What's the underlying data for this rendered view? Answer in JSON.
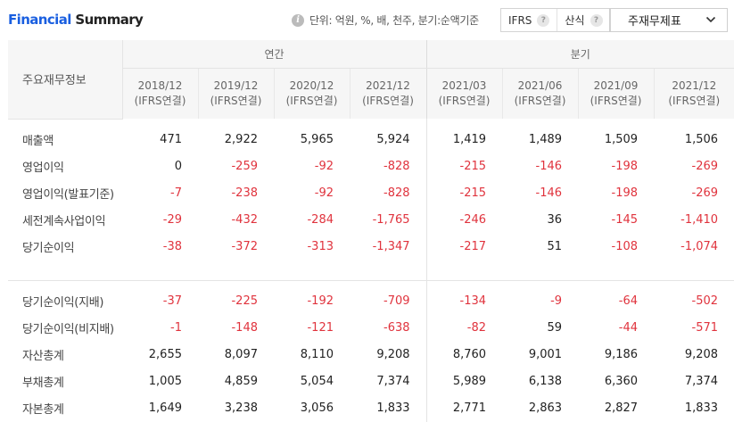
{
  "header": {
    "title_part1": "Financial",
    "title_part2": "Summary",
    "unit_text": "단위: 억원, %, 배, 천주, 분기:순액기준",
    "buttons": [
      {
        "label": "IFRS",
        "help": "?"
      },
      {
        "label": "산식",
        "help": "?"
      }
    ],
    "dropdown_label": "주재무제표"
  },
  "table": {
    "corner_label": "주요재무정보",
    "group_annual": "연간",
    "group_quarter": "분기",
    "periods": [
      {
        "date": "2018/12",
        "basis": "(IFRS연결)"
      },
      {
        "date": "2019/12",
        "basis": "(IFRS연결)"
      },
      {
        "date": "2020/12",
        "basis": "(IFRS연결)"
      },
      {
        "date": "2021/12",
        "basis": "(IFRS연결)"
      },
      {
        "date": "2021/03",
        "basis": "(IFRS연결)"
      },
      {
        "date": "2021/06",
        "basis": "(IFRS연결)"
      },
      {
        "date": "2021/09",
        "basis": "(IFRS연결)"
      },
      {
        "date": "2021/12",
        "basis": "(IFRS연결)"
      }
    ],
    "rows_group1": [
      {
        "label": "매출액",
        "values": [
          "471",
          "2,922",
          "5,965",
          "5,924",
          "1,419",
          "1,489",
          "1,509",
          "1,506"
        ]
      },
      {
        "label": "영업이익",
        "values": [
          "0",
          "-259",
          "-92",
          "-828",
          "-215",
          "-146",
          "-198",
          "-269"
        ]
      },
      {
        "label": "영업이익(발표기준)",
        "values": [
          "-7",
          "-238",
          "-92",
          "-828",
          "-215",
          "-146",
          "-198",
          "-269"
        ]
      },
      {
        "label": "세전계속사업이익",
        "values": [
          "-29",
          "-432",
          "-284",
          "-1,765",
          "-246",
          "36",
          "-145",
          "-1,410"
        ]
      },
      {
        "label": "당기순이익",
        "values": [
          "-38",
          "-372",
          "-313",
          "-1,347",
          "-217",
          "51",
          "-108",
          "-1,074"
        ]
      }
    ],
    "rows_group2": [
      {
        "label": "당기순이익(지배)",
        "values": [
          "-37",
          "-225",
          "-192",
          "-709",
          "-134",
          "-9",
          "-64",
          "-502"
        ]
      },
      {
        "label": "당기순이익(비지배)",
        "values": [
          "-1",
          "-148",
          "-121",
          "-638",
          "-82",
          "59",
          "-44",
          "-571"
        ]
      },
      {
        "label": "자산총계",
        "values": [
          "2,655",
          "8,097",
          "8,110",
          "9,208",
          "8,760",
          "9,001",
          "9,186",
          "9,208"
        ]
      },
      {
        "label": "부채총계",
        "values": [
          "1,005",
          "4,859",
          "5,054",
          "7,374",
          "5,989",
          "6,138",
          "6,360",
          "7,374"
        ]
      },
      {
        "label": "자본총계",
        "values": [
          "1,649",
          "3,238",
          "3,056",
          "1,833",
          "2,771",
          "2,863",
          "2,827",
          "1,833"
        ]
      }
    ],
    "negative_color": "#e0333d"
  }
}
